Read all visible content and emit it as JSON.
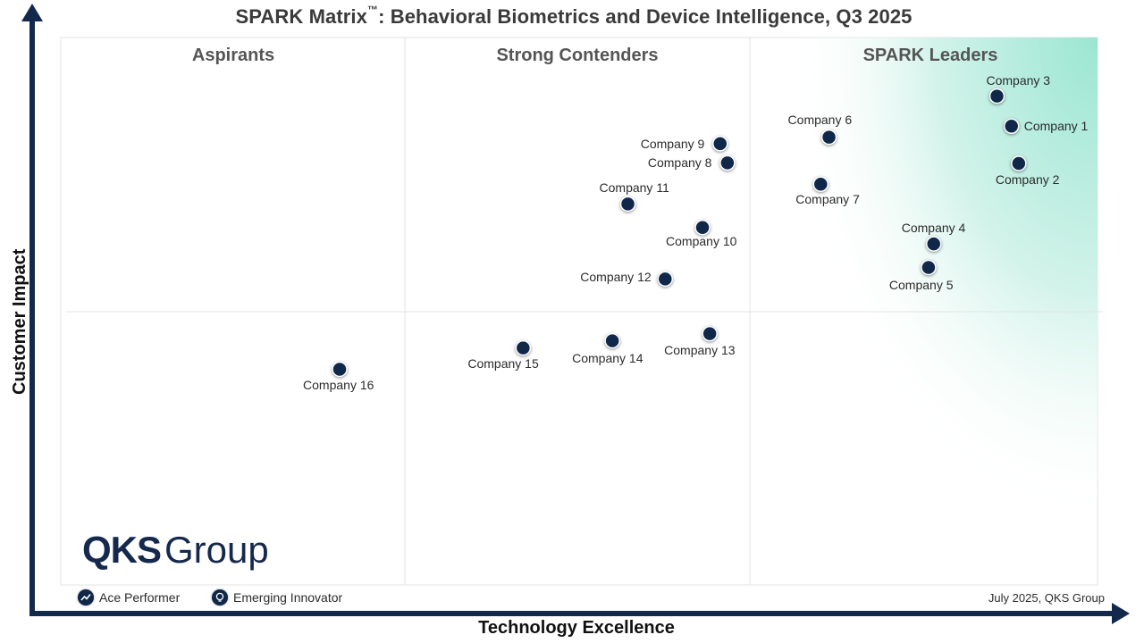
{
  "chart_data": {
    "type": "scatter",
    "title": "SPARK Matrix™: Behavioral Biometrics and Device Intelligence, Q3 2025",
    "title_main": "SPARK Matrix",
    "title_mark": "™",
    "title_rest": ": Behavioral Biometrics and Device Intelligence, Q3 2025",
    "xlabel": "Technology Excellence",
    "ylabel": "Customer Impact",
    "quadrants": [
      "Aspirants",
      "Strong Contenders",
      "SPARK Leaders"
    ],
    "points": [
      {
        "label": "Company 1",
        "x": 0.917,
        "y": 0.838
      },
      {
        "label": "Company 2",
        "x": 0.924,
        "y": 0.77
      },
      {
        "label": "Company 3",
        "x": 0.903,
        "y": 0.893
      },
      {
        "label": "Company 4",
        "x": 0.842,
        "y": 0.623
      },
      {
        "label": "Company 5",
        "x": 0.837,
        "y": 0.58
      },
      {
        "label": "Company 6",
        "x": 0.741,
        "y": 0.818
      },
      {
        "label": "Company 7",
        "x": 0.733,
        "y": 0.732
      },
      {
        "label": "Company 8",
        "x": 0.643,
        "y": 0.771
      },
      {
        "label": "Company 9",
        "x": 0.636,
        "y": 0.806
      },
      {
        "label": "Company 10",
        "x": 0.619,
        "y": 0.653
      },
      {
        "label": "Company 11",
        "x": 0.547,
        "y": 0.696
      },
      {
        "label": "Company 12",
        "x": 0.583,
        "y": 0.559
      },
      {
        "label": "Company 13",
        "x": 0.626,
        "y": 0.459
      },
      {
        "label": "Company 14",
        "x": 0.532,
        "y": 0.446
      },
      {
        "label": "Company 15",
        "x": 0.446,
        "y": 0.433
      },
      {
        "label": "Company 16",
        "x": 0.269,
        "y": 0.394
      }
    ],
    "legend": [
      {
        "name": "Ace Performer",
        "icon": "trend-up-icon"
      },
      {
        "name": "Emerging Innovator",
        "icon": "lightbulb-icon"
      }
    ],
    "legend_placement": "bottom-left",
    "grid": false
  },
  "footer": {
    "date": "July 2025, QKS Group"
  },
  "logo": {
    "text_bold": "QKS",
    "text_light": "Group"
  },
  "colors": {
    "marker": "#0f2749",
    "axis": "#13294b",
    "leaders_gradient": "#9be6d2",
    "logo": "#15294d"
  }
}
